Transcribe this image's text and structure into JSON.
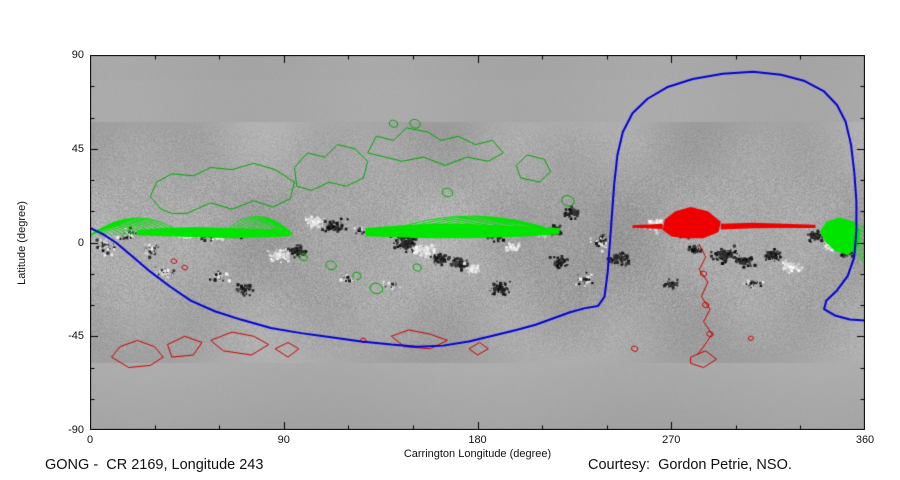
{
  "chart_data": {
    "type": "heatmap",
    "title": "GONG -  CR 2169, Longitude 243",
    "credit": "Courtesy:  Gordon Petrie, NSO.",
    "xlabel": "Carrington Longitude (degree)",
    "ylabel": "Latitude (degree)",
    "xlim": [
      0,
      360
    ],
    "ylim": [
      -90,
      90
    ],
    "x_ticks": [
      0,
      90,
      180,
      270,
      360
    ],
    "y_ticks": [
      90,
      45,
      0,
      -45,
      -90
    ],
    "x_minor_step": 30,
    "y_minor_step": 15,
    "grid": false,
    "colors": {
      "background_gray": "#a7a7a7",
      "open_field_positive_green": "#00e400",
      "contour_green": "#00a800",
      "open_field_negative_red": "#ee0000",
      "contour_red": "#cc0000",
      "neutral_line_blue": "#0000d8",
      "axis_text": "#111111",
      "page_background": "#ffffff"
    },
    "active_regions": [
      [
        8,
        -2,
        6,
        5,
        "speck"
      ],
      [
        18,
        4,
        6,
        4,
        "speck"
      ],
      [
        28,
        -4,
        5,
        4,
        "speck"
      ],
      [
        46,
        4,
        9,
        3,
        "w"
      ],
      [
        57,
        3,
        8,
        3,
        "bw"
      ],
      [
        70,
        4,
        6,
        3,
        "speck"
      ],
      [
        88,
        -6,
        7,
        4,
        "w"
      ],
      [
        97,
        -4,
        6,
        4,
        "b"
      ],
      [
        104,
        10,
        6,
        4,
        "w"
      ],
      [
        114,
        8,
        7,
        4,
        "b"
      ],
      [
        126,
        6,
        5,
        3,
        "speck"
      ],
      [
        146,
        0,
        8,
        5,
        "b"
      ],
      [
        156,
        -4,
        7,
        4,
        "w"
      ],
      [
        163,
        -8,
        6,
        4,
        "b"
      ],
      [
        172,
        -10,
        6,
        4,
        "b"
      ],
      [
        178,
        -13,
        5,
        3,
        "w"
      ],
      [
        189,
        4,
        7,
        4,
        "b"
      ],
      [
        196,
        -2,
        5,
        3,
        "w"
      ],
      [
        208,
        5,
        6,
        3,
        "w"
      ],
      [
        216,
        6,
        5,
        3,
        "b"
      ],
      [
        218,
        -9,
        6,
        4,
        "b"
      ],
      [
        224,
        14,
        5,
        4,
        "b"
      ],
      [
        237,
        0,
        7,
        5,
        "speck"
      ],
      [
        246,
        -8,
        6,
        4,
        "b"
      ],
      [
        262,
        8,
        6,
        4,
        "w"
      ],
      [
        274,
        5,
        6,
        4,
        "b"
      ],
      [
        281,
        -3,
        5,
        3,
        "b"
      ],
      [
        295,
        -6,
        8,
        5,
        "b"
      ],
      [
        304,
        -9,
        6,
        4,
        "b"
      ],
      [
        317,
        -6,
        6,
        4,
        "b"
      ],
      [
        326,
        -12,
        6,
        4,
        "w"
      ],
      [
        337,
        3,
        5,
        4,
        "b"
      ],
      [
        345,
        -2,
        5,
        3,
        "w"
      ],
      [
        352,
        -4,
        5,
        4,
        "b"
      ],
      [
        35,
        -14,
        7,
        4,
        "speck"
      ],
      [
        60,
        -16,
        6,
        4,
        "speck"
      ],
      [
        72,
        -23,
        5,
        3,
        "b"
      ],
      [
        120,
        -18,
        6,
        3,
        "speck"
      ],
      [
        140,
        -21,
        5,
        3,
        "speck"
      ],
      [
        190,
        -22,
        6,
        4,
        "b"
      ],
      [
        230,
        -18,
        6,
        4,
        "speck"
      ],
      [
        270,
        -20,
        5,
        3,
        "b"
      ],
      [
        308,
        -20,
        6,
        4,
        "speck"
      ]
    ],
    "green": {
      "fills": [
        [
          [
            22,
            6
          ],
          [
            35,
            7
          ],
          [
            50,
            7.5
          ],
          [
            65,
            7
          ],
          [
            80,
            6.5
          ],
          [
            93,
            6
          ],
          [
            93,
            3
          ],
          [
            80,
            2.5
          ],
          [
            65,
            2
          ],
          [
            50,
            2.5
          ],
          [
            35,
            3
          ],
          [
            22,
            3.5
          ]
        ],
        [
          [
            128,
            7
          ],
          [
            142,
            8
          ],
          [
            158,
            9
          ],
          [
            175,
            9
          ],
          [
            192,
            8
          ],
          [
            205,
            7.5
          ],
          [
            218,
            7
          ],
          [
            218,
            4
          ],
          [
            205,
            3
          ],
          [
            192,
            2.5
          ],
          [
            175,
            2
          ],
          [
            158,
            2
          ],
          [
            142,
            2.5
          ],
          [
            128,
            3
          ]
        ],
        [
          [
            339,
            5
          ],
          [
            342,
            10
          ],
          [
            348,
            12
          ],
          [
            355,
            10
          ],
          [
            358,
            6
          ],
          [
            357,
            -2
          ],
          [
            352,
            -6
          ],
          [
            346,
            -4
          ],
          [
            342,
            0
          ]
        ]
      ],
      "fans": [
        [
          0,
          3,
          5,
          2.6,
          16,
          4,
          0.9
        ],
        [
          94,
          4,
          88,
          -2.2,
          13,
          2.5,
          1.2
        ],
        [
          217,
          5,
          210,
          -4.8,
          16,
          2.5,
          0.85
        ]
      ],
      "edge_fan": {
        "foot": [
          343,
          9
        ],
        "edge_lon": 360,
        "lat_start": 7,
        "lat_step": -2.2,
        "count": 9
      },
      "loops": [
        [
          [
            33,
            16
          ],
          [
            28,
            22
          ],
          [
            31,
            29
          ],
          [
            38,
            33
          ],
          [
            48,
            32
          ],
          [
            56,
            36
          ],
          [
            66,
            35
          ],
          [
            76,
            38
          ],
          [
            86,
            35
          ],
          [
            95,
            29
          ],
          [
            93,
            21
          ],
          [
            85,
            17
          ],
          [
            76,
            20
          ],
          [
            66,
            16
          ],
          [
            56,
            19
          ],
          [
            45,
            14
          ],
          [
            38,
            14
          ]
        ],
        [
          [
            96,
            27
          ],
          [
            95,
            36
          ],
          [
            101,
            43
          ],
          [
            109,
            41
          ],
          [
            115,
            47
          ],
          [
            123,
            45
          ],
          [
            129,
            39
          ],
          [
            127,
            31
          ],
          [
            119,
            27
          ],
          [
            111,
            29
          ],
          [
            103,
            25
          ]
        ],
        [
          [
            129,
            43
          ],
          [
            133,
            51
          ],
          [
            141,
            49
          ],
          [
            147,
            55
          ],
          [
            157,
            53
          ],
          [
            163,
            49
          ],
          [
            171,
            51
          ],
          [
            179,
            47
          ],
          [
            187,
            49
          ],
          [
            192,
            43
          ],
          [
            185,
            39
          ],
          [
            175,
            41
          ],
          [
            165,
            37
          ],
          [
            155,
            41
          ],
          [
            145,
            39
          ],
          [
            137,
            41
          ]
        ],
        [
          [
            200,
            31
          ],
          [
            198,
            37
          ],
          [
            203,
            42
          ],
          [
            211,
            40
          ],
          [
            214,
            34
          ],
          [
            209,
            29
          ]
        ]
      ],
      "circles": [
        [
          99,
          -7,
          2
        ],
        [
          112,
          -11,
          2.5
        ],
        [
          124,
          -16,
          2
        ],
        [
          133,
          -22,
          3
        ],
        [
          152,
          -12,
          2
        ],
        [
          141,
          57,
          2
        ],
        [
          151,
          57,
          2.5
        ],
        [
          222,
          20,
          3
        ],
        [
          166,
          24,
          2.5
        ]
      ]
    },
    "red": {
      "fills": [
        [
          [
            266,
            6
          ],
          [
            267,
            11
          ],
          [
            272,
            15
          ],
          [
            279,
            17
          ],
          [
            287,
            15
          ],
          [
            293,
            10
          ],
          [
            292,
            5
          ],
          [
            285,
            2
          ],
          [
            276,
            2
          ],
          [
            270,
            3
          ]
        ],
        [
          [
            293,
            9
          ],
          [
            308,
            9.5
          ],
          [
            322,
            9
          ],
          [
            337,
            8.5
          ],
          [
            337,
            7
          ],
          [
            322,
            7
          ],
          [
            308,
            6.8
          ],
          [
            293,
            6.3
          ]
        ],
        [
          [
            252,
            8.3
          ],
          [
            266,
            9
          ],
          [
            266,
            6.5
          ],
          [
            252,
            7.1
          ]
        ]
      ],
      "loops": [
        [
          [
            10,
            -55
          ],
          [
            14,
            -50
          ],
          [
            22,
            -47
          ],
          [
            30,
            -50
          ],
          [
            34,
            -55
          ],
          [
            28,
            -59
          ],
          [
            18,
            -60
          ]
        ],
        [
          [
            36,
            -49
          ],
          [
            44,
            -45
          ],
          [
            52,
            -48
          ],
          [
            48,
            -54
          ],
          [
            38,
            -55
          ]
        ],
        [
          [
            56,
            -47
          ],
          [
            66,
            -43
          ],
          [
            76,
            -45
          ],
          [
            83,
            -49
          ],
          [
            75,
            -54
          ],
          [
            62,
            -52
          ]
        ],
        [
          [
            86,
            -51
          ],
          [
            92,
            -48
          ],
          [
            97,
            -51
          ],
          [
            92,
            -55
          ]
        ],
        [
          [
            140,
            -45
          ],
          [
            148,
            -42
          ],
          [
            158,
            -44
          ],
          [
            166,
            -47
          ],
          [
            158,
            -51
          ],
          [
            146,
            -50
          ]
        ],
        [
          [
            176,
            -51
          ],
          [
            181,
            -48
          ],
          [
            185,
            -51
          ],
          [
            180,
            -54
          ]
        ],
        [
          [
            279,
            -55
          ],
          [
            286,
            -52
          ],
          [
            291,
            -56
          ],
          [
            285,
            -60
          ],
          [
            279,
            -58
          ]
        ]
      ],
      "squiggle": [
        [
          283,
          -1
        ],
        [
          286,
          -7
        ],
        [
          283,
          -13
        ],
        [
          287,
          -19
        ],
        [
          284,
          -26
        ],
        [
          288,
          -32
        ],
        [
          285,
          -38
        ],
        [
          289,
          -44
        ],
        [
          285,
          -50
        ],
        [
          282,
          -54
        ]
      ],
      "circles": [
        [
          39,
          -9,
          1.3
        ],
        [
          44,
          -12,
          1.3
        ],
        [
          253,
          -51,
          1.5
        ],
        [
          127,
          -47,
          1.3
        ],
        [
          285,
          -15,
          1.5
        ],
        [
          286,
          -30,
          1.5
        ],
        [
          288,
          -44,
          1.5
        ],
        [
          307,
          -46,
          1.2
        ]
      ]
    },
    "neutral_line": [
      [
        0,
        7
      ],
      [
        6,
        4
      ],
      [
        12,
        0
      ],
      [
        20,
        -7
      ],
      [
        28,
        -14
      ],
      [
        37,
        -21
      ],
      [
        47,
        -28
      ],
      [
        58,
        -33
      ],
      [
        70,
        -37
      ],
      [
        84,
        -41
      ],
      [
        98,
        -43.5
      ],
      [
        112,
        -45.5
      ],
      [
        126,
        -47.5
      ],
      [
        140,
        -49
      ],
      [
        152,
        -50
      ],
      [
        164,
        -49.5
      ],
      [
        176,
        -47.5
      ],
      [
        188,
        -44.5
      ],
      [
        198,
        -42
      ],
      [
        207,
        -39.5
      ],
      [
        215,
        -36.5
      ],
      [
        223,
        -33.5
      ],
      [
        230,
        -31.5
      ],
      [
        236,
        -30.5
      ],
      [
        239,
        -26
      ],
      [
        240.5,
        -14
      ],
      [
        241.5,
        0
      ],
      [
        242.5,
        14
      ],
      [
        243.5,
        28
      ],
      [
        245,
        42
      ],
      [
        247.5,
        53
      ],
      [
        252,
        62
      ],
      [
        259,
        69
      ],
      [
        268,
        74.5
      ],
      [
        280,
        78.5
      ],
      [
        294,
        81
      ],
      [
        308,
        82
      ],
      [
        321,
        80.5
      ],
      [
        332,
        77.5
      ],
      [
        341,
        72.5
      ],
      [
        347,
        66
      ],
      [
        351,
        58
      ],
      [
        353.5,
        47
      ],
      [
        355,
        34
      ],
      [
        356,
        20
      ],
      [
        356,
        6
      ],
      [
        355,
        -7
      ],
      [
        352,
        -16
      ],
      [
        347,
        -23
      ],
      [
        342,
        -28
      ],
      [
        341,
        -32
      ],
      [
        346,
        -35
      ],
      [
        353,
        -37
      ],
      [
        360,
        -37.5
      ]
    ]
  }
}
